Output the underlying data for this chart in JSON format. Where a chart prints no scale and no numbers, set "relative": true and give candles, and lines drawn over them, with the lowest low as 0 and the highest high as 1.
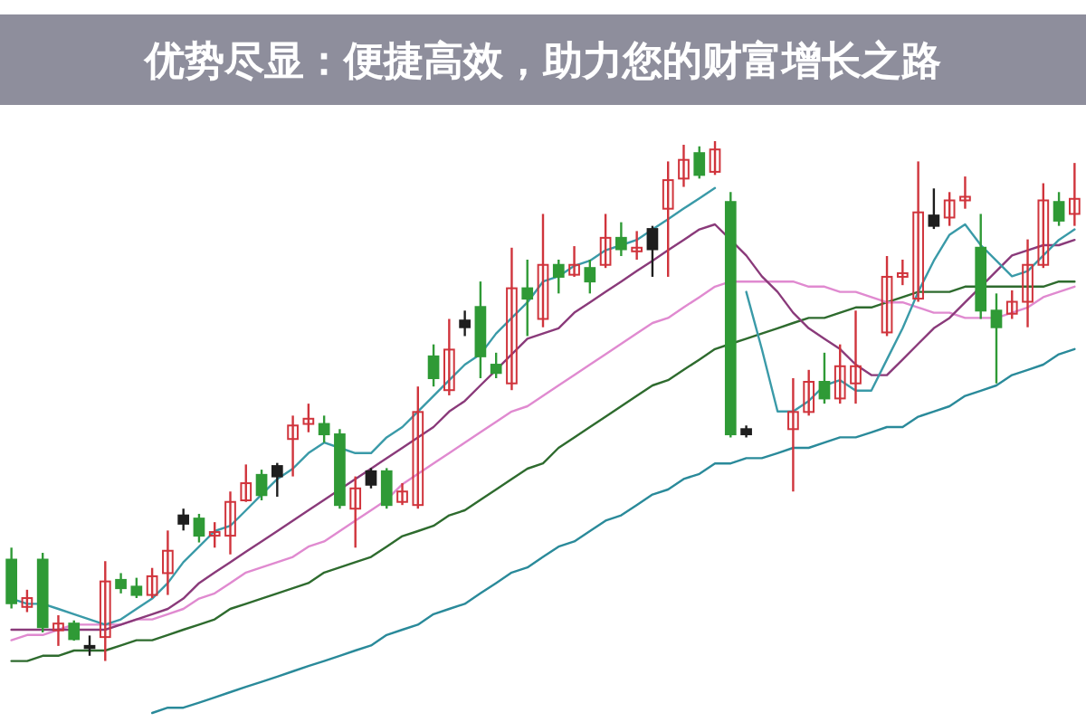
{
  "chart_data": {
    "type": "candlestick",
    "title": "优势尽显：便捷高效，助力您的财富增长之路",
    "relative": true,
    "categories": [
      null,
      null,
      null,
      null,
      null,
      null,
      null,
      null,
      null,
      null,
      null,
      null,
      null,
      null,
      null,
      null,
      null,
      null,
      null,
      null,
      null,
      null,
      null,
      null,
      null,
      null,
      null,
      null,
      null,
      null,
      null,
      null,
      null,
      null,
      null,
      null,
      null,
      null,
      null,
      null,
      null,
      null,
      null,
      null,
      null,
      null,
      null,
      null,
      null,
      null,
      null,
      null,
      null,
      null,
      null,
      null,
      null,
      null,
      null,
      null,
      null,
      null,
      null,
      null,
      null,
      null,
      null,
      null,
      null
    ],
    "ohlc": [
      [
        0.195,
        0.218,
        0.101,
        0.111
      ],
      [
        0.104,
        0.137,
        0.094,
        0.121
      ],
      [
        0.195,
        0.208,
        0.055,
        0.065
      ],
      [
        0.059,
        0.088,
        0.029,
        0.072
      ],
      [
        0.072,
        0.078,
        0.039,
        0.042
      ],
      [
        0.029,
        0.049,
        0.01,
        0.026
      ],
      [
        0.046,
        0.192,
        0.0,
        0.153
      ],
      [
        0.156,
        0.169,
        0.13,
        0.14
      ],
      [
        0.143,
        0.16,
        0.121,
        0.127
      ],
      [
        0.127,
        0.179,
        0.121,
        0.163
      ],
      [
        0.169,
        0.251,
        0.127,
        0.212
      ],
      [
        0.264,
        0.293,
        0.251,
        0.28
      ],
      [
        0.274,
        0.283,
        0.228,
        0.241
      ],
      [
        0.241,
        0.267,
        0.218,
        0.248
      ],
      [
        0.241,
        0.326,
        0.205,
        0.306
      ],
      [
        0.309,
        0.378,
        0.306,
        0.342
      ],
      [
        0.358,
        0.368,
        0.309,
        0.319
      ],
      [
        0.375,
        0.381,
        0.316,
        0.355
      ],
      [
        0.427,
        0.472,
        0.355,
        0.453
      ],
      [
        0.456,
        0.495,
        0.44,
        0.466
      ],
      [
        0.456,
        0.472,
        0.42,
        0.436
      ],
      [
        0.436,
        0.446,
        0.293,
        0.3
      ],
      [
        0.293,
        0.355,
        0.218,
        0.332
      ],
      [
        0.339,
        0.371,
        0.332,
        0.365
      ],
      [
        0.365,
        0.371,
        0.293,
        0.3
      ],
      [
        0.306,
        0.342,
        0.3,
        0.326
      ],
      [
        0.3,
        0.528,
        0.293,
        0.479
      ],
      [
        0.586,
        0.609,
        0.528,
        0.544
      ],
      [
        0.521,
        0.658,
        0.511,
        0.599
      ],
      [
        0.642,
        0.674,
        0.625,
        0.655
      ],
      [
        0.681,
        0.73,
        0.544,
        0.586
      ],
      [
        0.57,
        0.593,
        0.544,
        0.554
      ],
      [
        0.534,
        0.795,
        0.521,
        0.717
      ],
      [
        0.717,
        0.772,
        0.625,
        0.697
      ],
      [
        0.658,
        0.86,
        0.642,
        0.762
      ],
      [
        0.762,
        0.772,
        0.707,
        0.739
      ],
      [
        0.743,
        0.798,
        0.739,
        0.762
      ],
      [
        0.756,
        0.772,
        0.707,
        0.73
      ],
      [
        0.762,
        0.86,
        0.756,
        0.814
      ],
      [
        0.814,
        0.844,
        0.779,
        0.792
      ],
      [
        0.788,
        0.827,
        0.772,
        0.795
      ],
      [
        0.792,
        0.837,
        0.739,
        0.831
      ],
      [
        0.87,
        0.961,
        0.739,
        0.925
      ],
      [
        0.928,
        0.993,
        0.912,
        0.964
      ],
      [
        0.977,
        0.99,
        0.928,
        0.935
      ],
      [
        0.941,
        1.0,
        0.935,
        0.984
      ],
      [
        0.883,
        0.902,
        0.43,
        0.436
      ],
      [
        0.446,
        0.453,
        0.43,
        0.436
      ],
      null,
      null,
      [
        0.446,
        0.544,
        0.326,
        0.479
      ],
      [
        0.479,
        0.56,
        0.472,
        0.537
      ],
      [
        0.537,
        0.593,
        0.495,
        0.505
      ],
      [
        0.505,
        0.609,
        0.495,
        0.567
      ],
      [
        0.534,
        0.674,
        0.495,
        0.567
      ],
      null,
      [
        0.632,
        0.779,
        0.625,
        0.739
      ],
      [
        0.739,
        0.772,
        0.723,
        0.746
      ],
      [
        0.697,
        0.961,
        0.691,
        0.863
      ],
      [
        0.837,
        0.909,
        0.831,
        0.857
      ],
      [
        0.853,
        0.902,
        0.837,
        0.886
      ],
      [
        0.886,
        0.932,
        0.87,
        0.893
      ],
      [
        0.795,
        0.86,
        0.658,
        0.674
      ],
      [
        0.674,
        0.707,
        0.534,
        0.642
      ],
      [
        0.668,
        0.713,
        0.658,
        0.691
      ],
      [
        0.691,
        0.811,
        0.642,
        0.762
      ],
      [
        0.762,
        0.919,
        0.756,
        0.886
      ],
      [
        0.883,
        0.902,
        0.837,
        0.847
      ],
      [
        0.86,
        0.958,
        0.837,
        0.889
      ]
    ],
    "colors": [
      "#2f9a36",
      "#d0343c",
      "#2f9a36",
      "#d0343c",
      "#2f9a36",
      "#1e1e1e",
      "#d0343c",
      "#2f9a36",
      "#2f9a36",
      "#d0343c",
      "#d0343c",
      "#1e1e1e",
      "#2f9a36",
      "#d0343c",
      "#d0343c",
      "#d0343c",
      "#2f9a36",
      "#1e1e1e",
      "#d0343c",
      "#d0343c",
      "#2f9a36",
      "#2f9a36",
      "#d0343c",
      "#1e1e1e",
      "#2f9a36",
      "#d0343c",
      "#d0343c",
      "#2f9a36",
      "#d0343c",
      "#1e1e1e",
      "#2f9a36",
      "#2f9a36",
      "#d0343c",
      "#2f9a36",
      "#d0343c",
      "#2f9a36",
      "#d0343c",
      "#2f9a36",
      "#d0343c",
      "#2f9a36",
      "#d0343c",
      "#1e1e1e",
      "#d0343c",
      "#d0343c",
      "#2f9a36",
      "#d0343c",
      "#2f9a36",
      "#1e1e1e",
      null,
      null,
      "#d0343c",
      "#d0343c",
      "#2f9a36",
      "#d0343c",
      "#d0343c",
      null,
      "#d0343c",
      "#d0343c",
      "#d0343c",
      "#1e1e1e",
      "#d0343c",
      "#d0343c",
      "#2f9a36",
      "#2f9a36",
      "#d0343c",
      "#d0343c",
      "#d0343c",
      "#2f9a36",
      "#d0343c"
    ],
    "series": [
      {
        "type": "line",
        "color": "#2a8a9a",
        "values": [
          null,
          null,
          null,
          null,
          null,
          null,
          null,
          null,
          null,
          -0.1,
          -0.09,
          -0.09,
          -0.08,
          -0.07,
          -0.06,
          -0.05,
          -0.04,
          -0.03,
          -0.02,
          -0.01,
          0.0,
          0.01,
          0.02,
          0.03,
          0.05,
          0.06,
          0.07,
          0.09,
          0.1,
          0.11,
          0.13,
          0.15,
          0.17,
          0.18,
          0.2,
          0.22,
          0.23,
          0.25,
          0.27,
          0.28,
          0.3,
          0.32,
          0.33,
          0.35,
          0.36,
          0.38,
          0.38,
          0.39,
          0.39,
          0.4,
          0.41,
          0.41,
          0.42,
          0.43,
          0.43,
          0.44,
          0.45,
          0.45,
          0.47,
          0.48,
          0.49,
          0.51,
          0.52,
          0.53,
          0.55,
          0.56,
          0.57,
          0.59,
          0.6
        ]
      },
      {
        "type": "line",
        "color": "#2e6b2e",
        "values": [
          0.0,
          0.0,
          0.01,
          0.01,
          0.02,
          0.02,
          0.02,
          0.03,
          0.04,
          0.04,
          0.05,
          0.06,
          0.07,
          0.08,
          0.1,
          0.11,
          0.12,
          0.13,
          0.14,
          0.15,
          0.17,
          0.18,
          0.19,
          0.2,
          0.22,
          0.24,
          0.25,
          0.26,
          0.28,
          0.29,
          0.31,
          0.33,
          0.35,
          0.37,
          0.38,
          0.41,
          0.43,
          0.45,
          0.47,
          0.49,
          0.51,
          0.53,
          0.54,
          0.56,
          0.58,
          0.6,
          0.61,
          0.62,
          0.63,
          0.64,
          0.65,
          0.66,
          0.66,
          0.67,
          0.68,
          0.68,
          0.69,
          0.7,
          0.71,
          0.71,
          0.71,
          0.72,
          0.72,
          0.72,
          0.72,
          0.72,
          0.72,
          0.73,
          0.73
        ]
      },
      {
        "type": "line",
        "color": "#e08ad0",
        "values": [
          0.04,
          0.05,
          0.05,
          0.06,
          0.07,
          0.07,
          0.07,
          0.07,
          0.08,
          0.08,
          0.09,
          0.1,
          0.12,
          0.13,
          0.15,
          0.17,
          0.18,
          0.19,
          0.2,
          0.22,
          0.23,
          0.25,
          0.27,
          0.29,
          0.31,
          0.34,
          0.36,
          0.38,
          0.4,
          0.42,
          0.44,
          0.46,
          0.48,
          0.49,
          0.51,
          0.53,
          0.55,
          0.57,
          0.59,
          0.61,
          0.63,
          0.65,
          0.66,
          0.68,
          0.7,
          0.72,
          0.73,
          0.73,
          0.73,
          0.73,
          0.73,
          0.72,
          0.72,
          0.71,
          0.71,
          0.7,
          0.69,
          0.69,
          0.68,
          0.67,
          0.67,
          0.66,
          0.66,
          0.66,
          0.67,
          0.68,
          0.7,
          0.71,
          0.72
        ]
      },
      {
        "type": "line",
        "color": "#8a3a7a",
        "values": [
          0.06,
          0.06,
          0.06,
          0.06,
          0.06,
          0.06,
          0.06,
          0.07,
          0.08,
          0.09,
          0.1,
          0.12,
          0.15,
          0.17,
          0.19,
          0.21,
          0.23,
          0.25,
          0.27,
          0.29,
          0.31,
          0.33,
          0.35,
          0.37,
          0.39,
          0.41,
          0.43,
          0.45,
          0.48,
          0.5,
          0.53,
          0.56,
          0.59,
          0.62,
          0.63,
          0.64,
          0.67,
          0.69,
          0.71,
          0.73,
          0.75,
          0.77,
          0.79,
          0.81,
          0.83,
          0.84,
          0.81,
          0.78,
          0.74,
          0.71,
          0.67,
          0.64,
          0.62,
          0.6,
          0.57,
          0.55,
          0.55,
          0.58,
          0.61,
          0.64,
          0.66,
          0.69,
          0.72,
          0.75,
          0.78,
          0.79,
          0.8,
          0.8,
          0.81
        ]
      },
      {
        "type": "line",
        "color": "#3a9aa8",
        "values": [
          0.12,
          0.11,
          0.11,
          0.1,
          0.09,
          0.08,
          0.07,
          0.08,
          0.1,
          0.12,
          0.15,
          0.19,
          0.22,
          0.25,
          0.26,
          0.29,
          0.32,
          0.35,
          0.37,
          0.4,
          0.42,
          0.41,
          0.4,
          0.4,
          0.43,
          0.45,
          0.48,
          0.51,
          0.54,
          0.57,
          0.59,
          0.63,
          0.66,
          0.69,
          0.73,
          0.74,
          0.76,
          0.77,
          0.79,
          0.8,
          0.81,
          0.83,
          0.85,
          0.87,
          0.89,
          0.91,
          null,
          0.71,
          0.6,
          0.48,
          0.48,
          0.5,
          0.53,
          0.54,
          0.52,
          0.52,
          0.58,
          0.64,
          0.71,
          0.77,
          0.82,
          0.84,
          0.8,
          0.77,
          0.74,
          0.75,
          0.78,
          0.81,
          0.83
        ]
      }
    ]
  }
}
